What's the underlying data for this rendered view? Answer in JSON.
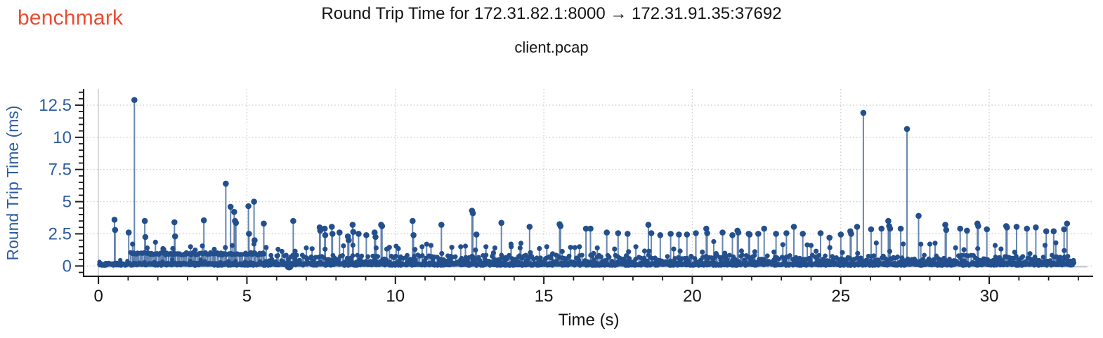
{
  "header": {
    "logo": "benchmark",
    "logo_color": "#ee4b32"
  },
  "chart_data": {
    "type": "scatter",
    "style": "stem",
    "title": "Round Trip Time for 172.31.82.1:8000 → 172.31.91.35:37692",
    "subtitle": "client.pcap",
    "xlabel": "Time (s)",
    "ylabel": "Round Trip Time (ms)",
    "xlim": [
      -0.5,
      33.5
    ],
    "ylim": [
      -0.8,
      13.75
    ],
    "xticks": [
      {
        "v": 0,
        "label": "0"
      },
      {
        "v": 5,
        "label": "5"
      },
      {
        "v": 10,
        "label": "10"
      },
      {
        "v": 15,
        "label": "15"
      },
      {
        "v": 20,
        "label": "20"
      },
      {
        "v": 25,
        "label": "25"
      },
      {
        "v": 30,
        "label": "30"
      }
    ],
    "yticks": [
      {
        "v": 0,
        "label": "0"
      },
      {
        "v": 2.5,
        "label": "2.5"
      },
      {
        "v": 5,
        "label": "5"
      },
      {
        "v": 7.5,
        "label": "7.5"
      },
      {
        "v": 10,
        "label": "10"
      },
      {
        "v": 12.5,
        "label": "12.5"
      }
    ],
    "x_minor_step": 1,
    "x_minor_max": 33,
    "y_minor_step": 0.5,
    "y_minor_max": 13.5,
    "grid": {
      "style": "dotted-major",
      "color": "#c9c9c9",
      "zero_x_solid": true
    },
    "legend": "none",
    "colors": {
      "dot": "#234f8d",
      "stem": "#5c7cab",
      "baseline": "#bcc4cf",
      "axis": "#1a1a1a",
      "tick_label_x": "#141414",
      "tick_label_y": "#2d5ca0",
      "ylabel": "#2d5ca0",
      "xlabel": "#141414"
    },
    "seed": 20240709,
    "spikes": [
      [
        0.54,
        3.6
      ],
      [
        0.56,
        2.8
      ],
      [
        1.02,
        2.6
      ],
      [
        1.21,
        12.9
      ],
      [
        1.56,
        3.5
      ],
      [
        1.58,
        2.25
      ],
      [
        1.92,
        1.85
      ],
      [
        2.2,
        1.3
      ],
      [
        2.56,
        3.4
      ],
      [
        2.58,
        2.3
      ],
      [
        3.1,
        1.5
      ],
      [
        3.55,
        3.55
      ],
      [
        3.9,
        1.3
      ],
      [
        4.29,
        6.4
      ],
      [
        4.45,
        4.6
      ],
      [
        4.57,
        4.2
      ],
      [
        4.6,
        3.5
      ],
      [
        4.63,
        3.35
      ],
      [
        5.05,
        4.65
      ],
      [
        5.07,
        2.5
      ],
      [
        5.24,
        5.0
      ],
      [
        5.26,
        2.0
      ],
      [
        5.57,
        3.3
      ],
      [
        6.05,
        1.3
      ],
      [
        6.56,
        3.5
      ],
      [
        7.0,
        1.4
      ],
      [
        7.45,
        3.0
      ],
      [
        7.47,
        2.75
      ],
      [
        7.62,
        2.9
      ],
      [
        7.64,
        2.4
      ],
      [
        7.86,
        3.05
      ],
      [
        7.88,
        2.5
      ],
      [
        8.12,
        2.6
      ],
      [
        8.4,
        2.3
      ],
      [
        8.43,
        2.0
      ],
      [
        8.56,
        3.2
      ],
      [
        8.58,
        2.65
      ],
      [
        8.76,
        2.5
      ],
      [
        9.02,
        2.4
      ],
      [
        9.3,
        2.6
      ],
      [
        9.33,
        2.25
      ],
      [
        9.52,
        3.2
      ],
      [
        9.55,
        3.1
      ],
      [
        9.8,
        1.45
      ],
      [
        10.1,
        1.35
      ],
      [
        10.58,
        3.5
      ],
      [
        10.61,
        2.4
      ],
      [
        10.9,
        1.5
      ],
      [
        11.2,
        1.6
      ],
      [
        11.55,
        3.2
      ],
      [
        11.9,
        1.45
      ],
      [
        12.2,
        1.5
      ],
      [
        12.58,
        4.3
      ],
      [
        12.61,
        4.1
      ],
      [
        12.73,
        2.45
      ],
      [
        13.05,
        1.5
      ],
      [
        13.35,
        1.4
      ],
      [
        13.57,
        3.35
      ],
      [
        13.9,
        1.5
      ],
      [
        14.2,
        1.4
      ],
      [
        14.52,
        3.05
      ],
      [
        14.85,
        1.35
      ],
      [
        15.1,
        1.5
      ],
      [
        15.53,
        3.25
      ],
      [
        15.56,
        3.1
      ],
      [
        15.9,
        1.45
      ],
      [
        16.2,
        1.5
      ],
      [
        16.42,
        2.9
      ],
      [
        16.57,
        2.9
      ],
      [
        16.8,
        1.4
      ],
      [
        17.12,
        2.6
      ],
      [
        17.5,
        2.55
      ],
      [
        17.82,
        2.5
      ],
      [
        18.1,
        1.5
      ],
      [
        18.52,
        3.2
      ],
      [
        18.62,
        2.55
      ],
      [
        18.92,
        2.4
      ],
      [
        19.27,
        2.5
      ],
      [
        19.55,
        2.45
      ],
      [
        19.82,
        2.45
      ],
      [
        20.12,
        2.55
      ],
      [
        20.47,
        2.9
      ],
      [
        20.5,
        2.55
      ],
      [
        20.72,
        1.9
      ],
      [
        21.02,
        2.6
      ],
      [
        21.35,
        2.4
      ],
      [
        21.52,
        2.75
      ],
      [
        21.55,
        2.6
      ],
      [
        21.9,
        2.5
      ],
      [
        21.93,
        2.45
      ],
      [
        22.22,
        2.5
      ],
      [
        22.42,
        2.9
      ],
      [
        22.82,
        2.5
      ],
      [
        23.17,
        2.55
      ],
      [
        23.42,
        3.05
      ],
      [
        23.72,
        2.5
      ],
      [
        24.0,
        1.6
      ],
      [
        24.32,
        2.55
      ],
      [
        24.62,
        2.2
      ],
      [
        25.0,
        2.45
      ],
      [
        25.32,
        2.7
      ],
      [
        25.35,
        2.5
      ],
      [
        25.55,
        3.05
      ],
      [
        25.76,
        11.9
      ],
      [
        26.02,
        2.85
      ],
      [
        26.37,
        2.9
      ],
      [
        26.6,
        3.5
      ],
      [
        26.63,
        3.1
      ],
      [
        26.66,
        2.9
      ],
      [
        27.02,
        2.9
      ],
      [
        27.23,
        10.65
      ],
      [
        27.62,
        3.9
      ],
      [
        28.0,
        1.7
      ],
      [
        28.52,
        3.2
      ],
      [
        28.55,
        2.8
      ],
      [
        29.02,
        2.9
      ],
      [
        29.25,
        2.75
      ],
      [
        29.6,
        3.3
      ],
      [
        29.63,
        3.1
      ],
      [
        29.92,
        2.85
      ],
      [
        30.2,
        1.6
      ],
      [
        30.57,
        3.1
      ],
      [
        30.6,
        3.0
      ],
      [
        30.92,
        3.05
      ],
      [
        31.27,
        2.9
      ],
      [
        31.57,
        3.0
      ],
      [
        31.92,
        2.7
      ],
      [
        32.17,
        2.7
      ],
      [
        32.52,
        2.85
      ],
      [
        32.62,
        3.3
      ]
    ],
    "noise_floor": {
      "t0": 0.03,
      "t1": 32.87,
      "step": 0.018,
      "vmin": 0.02,
      "vmax": 0.26
    },
    "low_bumps": {
      "t0": 0.1,
      "t1": 32.8,
      "step": 0.3,
      "vmin": 0.2,
      "vmax": 0.5
    },
    "mid_band": {
      "t0": 1.08,
      "t1": 5.62,
      "step": 0.045,
      "vmin": 0.84,
      "vmax": 1.06
    },
    "scatter_band": {
      "t0": 5.65,
      "t1": 32.86,
      "step": 0.07,
      "vmin": 0.3,
      "vmax": 0.85
    },
    "bumps": {
      "t0": 1.2,
      "t1": 32.7,
      "step": 0.5,
      "vmin": 0.95,
      "vmax": 1.8
    },
    "blob": {
      "t": 6.42,
      "v": 0.02,
      "r": 6.5
    },
    "baseline_end_t": 33.3
  }
}
